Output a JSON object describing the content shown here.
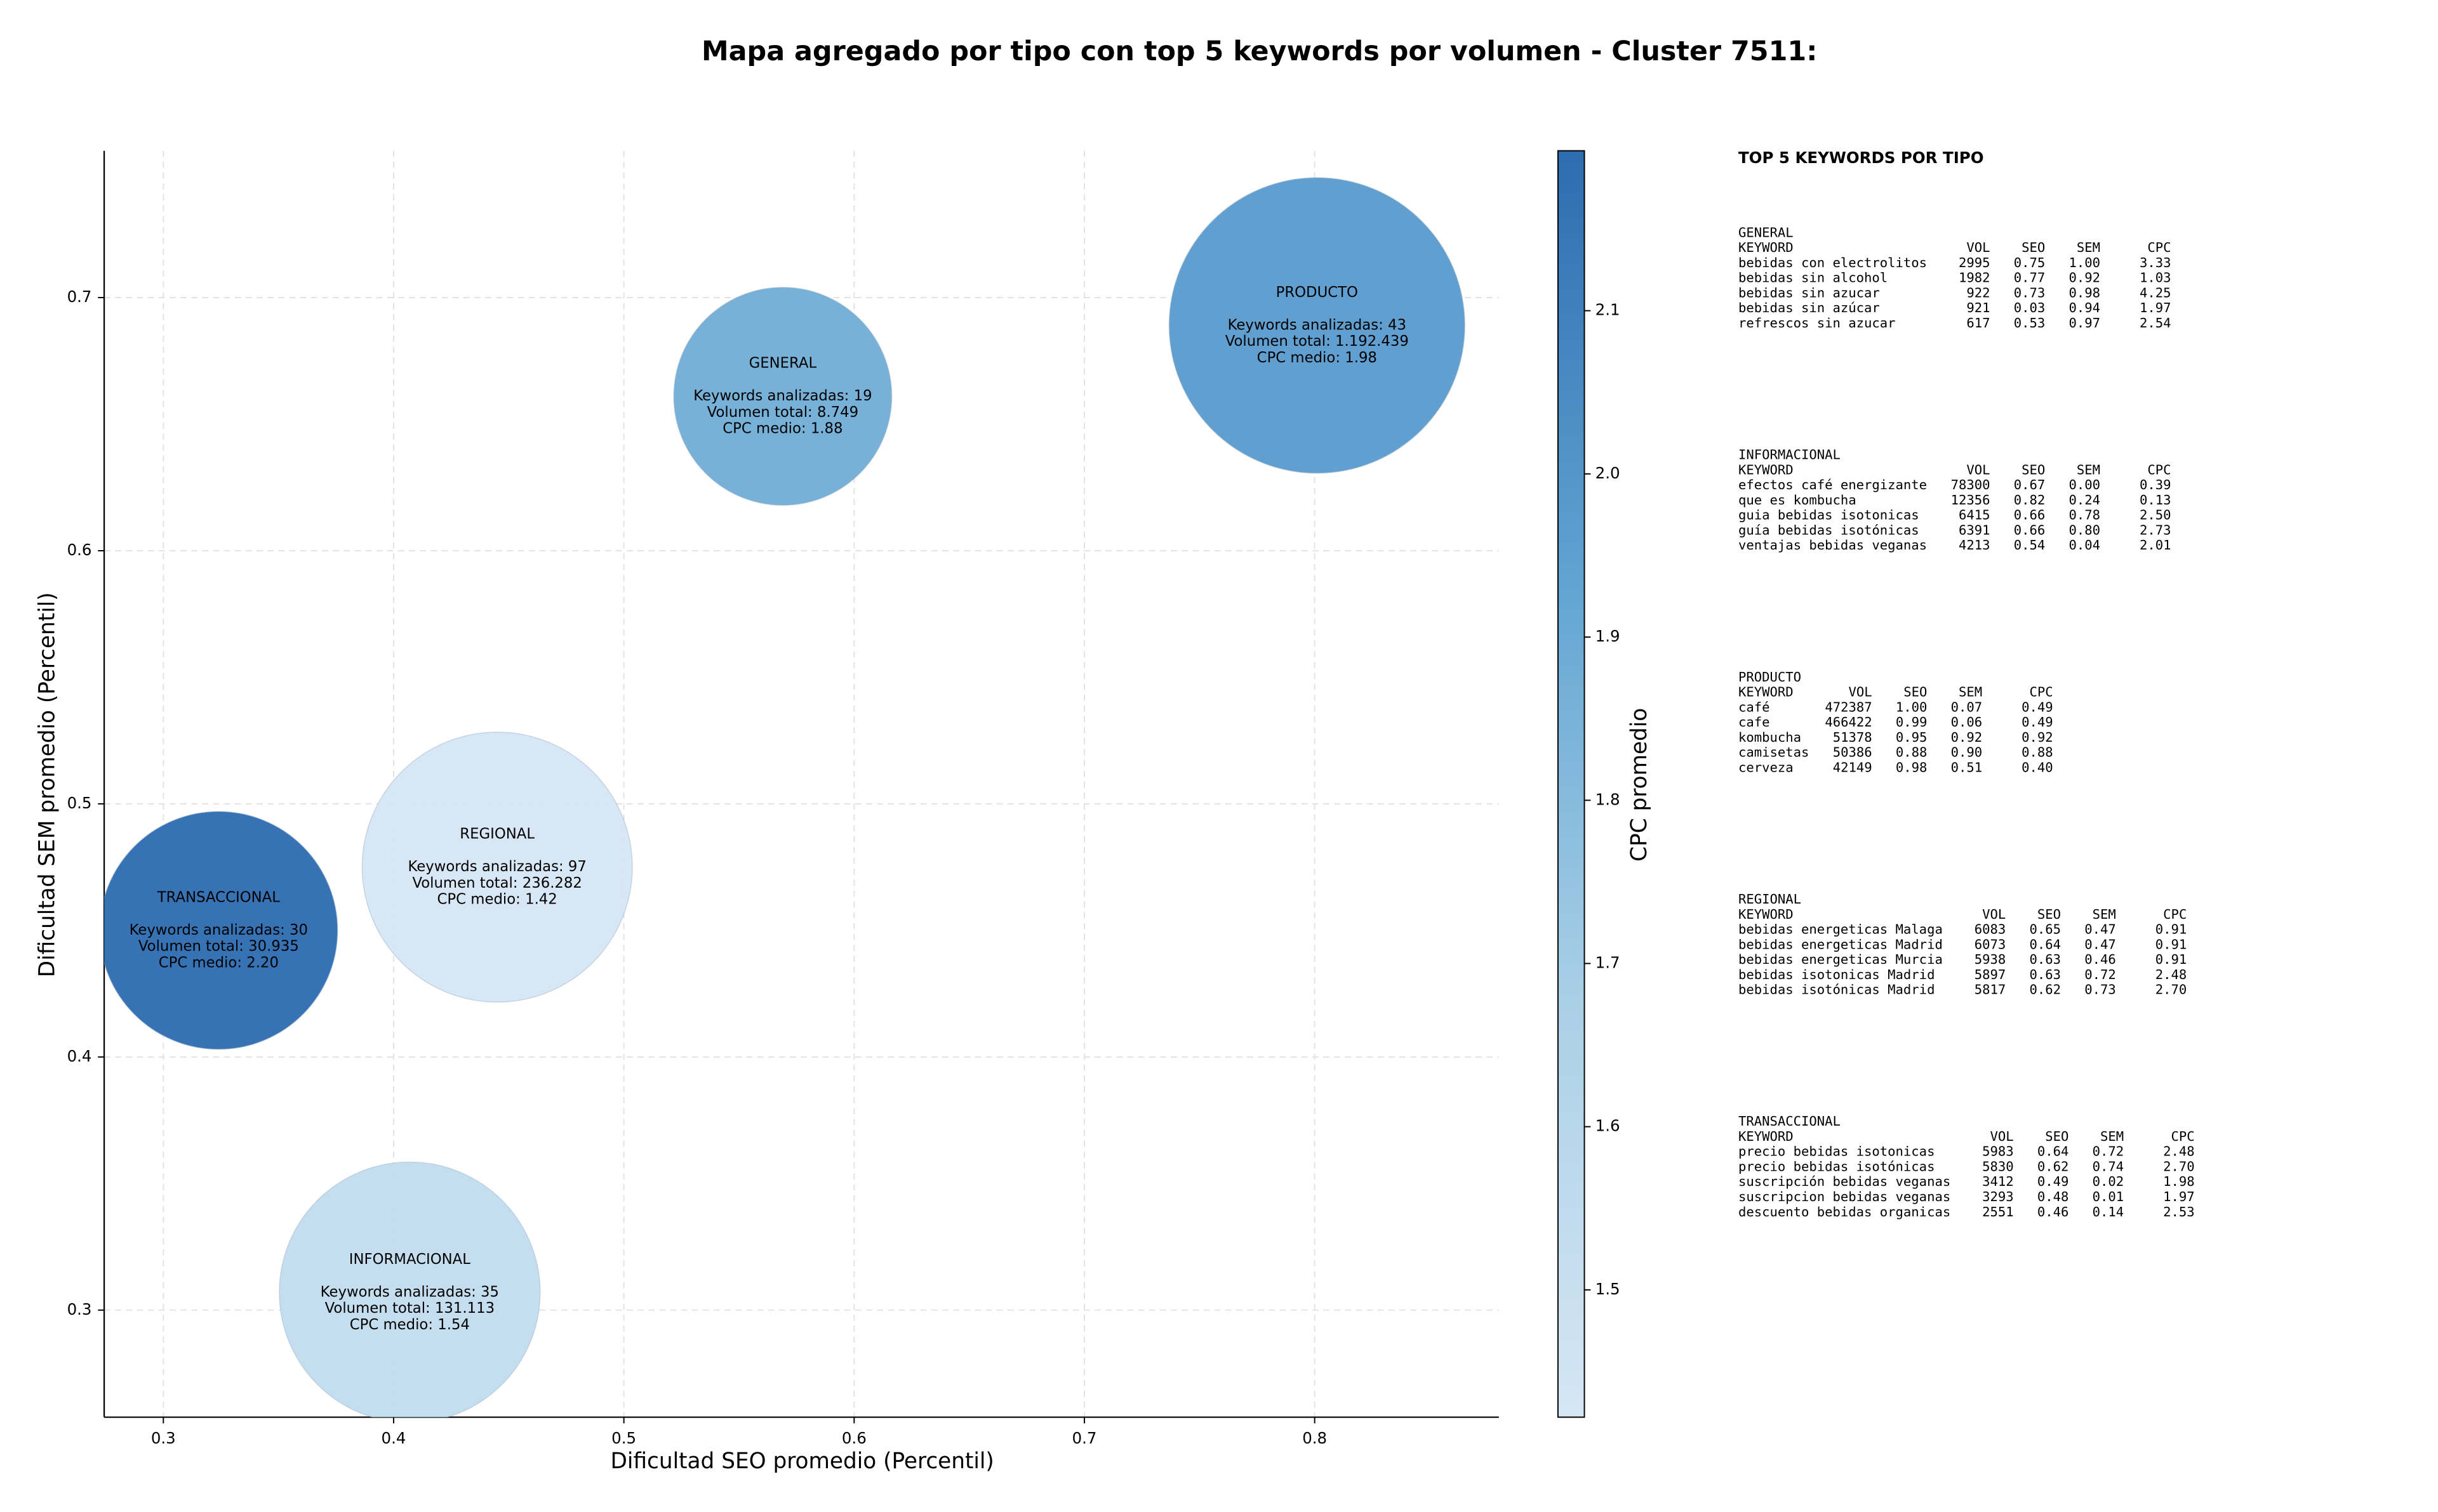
{
  "chart_data": {
    "type": "bubble",
    "title": "Mapa agregado por tipo con top 5 keywords por volumen - Cluster 7511:",
    "x_label": "Dificultad SEO promedio (Percentil)",
    "y_label": "Dificultad SEM promedio (Percentil)",
    "categories": [
      "GENERAL",
      "INFORMACIONAL",
      "PRODUCTO",
      "REGIONAL",
      "TRANSACCIONAL"
    ],
    "x": [
      0.569,
      0.407,
      0.801,
      0.445,
      0.324
    ],
    "values": [
      0.661,
      0.307,
      0.689,
      0.475,
      0.45
    ],
    "sizes": [
      8749,
      131113,
      1192439,
      236282,
      30935
    ],
    "color_values": [
      1.88,
      1.54,
      1.98,
      1.42,
      2.2
    ],
    "annotations": [
      [
        "Keywords analizadas: 19",
        "Volumen total: 8.749",
        "CPC medio: 1.88"
      ],
      [
        "Keywords analizadas: 35",
        "Volumen total: 131.113",
        "CPC medio: 1.54"
      ],
      [
        "Keywords analizadas: 43",
        "Volumen total: 1.192.439",
        "CPC medio: 1.98"
      ],
      [
        "Keywords analizadas: 97",
        "Volumen total: 236.282",
        "CPC medio: 1.42"
      ],
      [
        "Keywords analizadas: 30",
        "Volumen total: 30.935",
        "CPC medio: 2.20"
      ]
    ],
    "xlim": [
      0.2743,
      0.88
    ],
    "ylim": [
      0.2577,
      0.758
    ],
    "xticks": [
      0.3,
      0.4,
      0.5,
      0.6,
      0.7,
      0.8
    ],
    "yticks": [
      0.3,
      0.4,
      0.5,
      0.6,
      0.7
    ],
    "grid": true,
    "colorbar": {
      "label": "CPC promedio",
      "lim": [
        1.422,
        2.198
      ],
      "ticks": [
        1.5,
        1.6,
        1.7,
        1.8,
        1.9,
        {
          "value": 2,
          "label": "2.0"
        },
        2.1
      ],
      "colormap": [
        "#d6e6f4",
        "#a9cfe6",
        "#5fa3d1",
        "#2c6cb0"
      ]
    }
  },
  "panel": {
    "title": "TOP 5 KEYWORDS POR TIPO",
    "sections": [
      {
        "name": "GENERAL",
        "columns": [
          "KEYWORD",
          "VOL",
          "SEO",
          "SEM",
          "CPC"
        ],
        "rows": [
          [
            "bebidas con electrolitos",
            "2995",
            "0.75",
            "1.00",
            "3.33"
          ],
          [
            "bebidas sin alcohol",
            "1982",
            "0.77",
            "0.92",
            "1.03"
          ],
          [
            "bebidas sin azucar",
            "922",
            "0.73",
            "0.98",
            "4.25"
          ],
          [
            "bebidas sin azúcar",
            "921",
            "0.03",
            "0.94",
            "1.97"
          ],
          [
            "refrescos sin azucar",
            "617",
            "0.53",
            "0.97",
            "2.54"
          ]
        ]
      },
      {
        "name": "INFORMACIONAL",
        "columns": [
          "KEYWORD",
          "VOL",
          "SEO",
          "SEM",
          "CPC"
        ],
        "rows": [
          [
            "efectos café energizante",
            "78300",
            "0.67",
            "0.00",
            "0.39"
          ],
          [
            "que es kombucha",
            "12356",
            "0.82",
            "0.24",
            "0.13"
          ],
          [
            "guia bebidas isotonicas",
            "6415",
            "0.66",
            "0.78",
            "2.50"
          ],
          [
            "guía bebidas isotónicas",
            "6391",
            "0.66",
            "0.80",
            "2.73"
          ],
          [
            "ventajas bebidas veganas",
            "4213",
            "0.54",
            "0.04",
            "2.01"
          ]
        ]
      },
      {
        "name": "PRODUCTO",
        "columns": [
          "KEYWORD",
          "VOL",
          "SEO",
          "SEM",
          "CPC"
        ],
        "rows": [
          [
            "café",
            "472387",
            "1.00",
            "0.07",
            "0.49"
          ],
          [
            "cafe",
            "466422",
            "0.99",
            "0.06",
            "0.49"
          ],
          [
            "kombucha",
            "51378",
            "0.95",
            "0.92",
            "0.92"
          ],
          [
            "camisetas",
            "50386",
            "0.88",
            "0.90",
            "0.88"
          ],
          [
            "cerveza",
            "42149",
            "0.98",
            "0.51",
            "0.40"
          ]
        ]
      },
      {
        "name": "REGIONAL",
        "columns": [
          "KEYWORD",
          "VOL",
          "SEO",
          "SEM",
          "CPC"
        ],
        "rows": [
          [
            "bebidas energeticas Malaga",
            "6083",
            "0.65",
            "0.47",
            "0.91"
          ],
          [
            "bebidas energeticas Madrid",
            "6073",
            "0.64",
            "0.47",
            "0.91"
          ],
          [
            "bebidas energeticas Murcia",
            "5938",
            "0.63",
            "0.46",
            "0.91"
          ],
          [
            "bebidas isotonicas Madrid",
            "5897",
            "0.63",
            "0.72",
            "2.48"
          ],
          [
            "bebidas isotónicas Madrid",
            "5817",
            "0.62",
            "0.73",
            "2.70"
          ]
        ]
      },
      {
        "name": "TRANSACCIONAL",
        "columns": [
          "KEYWORD",
          "VOL",
          "SEO",
          "SEM",
          "CPC"
        ],
        "rows": [
          [
            "precio bebidas isotonicas",
            "5983",
            "0.64",
            "0.72",
            "2.48"
          ],
          [
            "precio bebidas isotónicas",
            "5830",
            "0.62",
            "0.74",
            "2.70"
          ],
          [
            "suscripción bebidas veganas",
            "3412",
            "0.49",
            "0.02",
            "1.98"
          ],
          [
            "suscripcion bebidas veganas",
            "3293",
            "0.48",
            "0.01",
            "1.97"
          ],
          [
            "descuento bebidas organicas",
            "2551",
            "0.46",
            "0.14",
            "2.53"
          ]
        ]
      }
    ]
  }
}
